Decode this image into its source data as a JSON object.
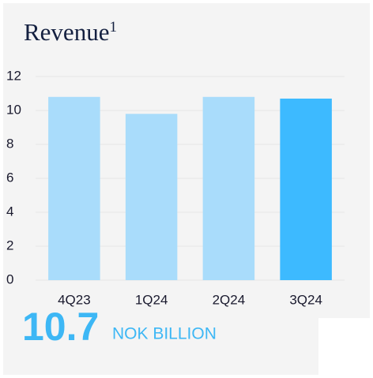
{
  "chart_data": {
    "type": "bar",
    "title": "Revenue",
    "title_note": "1",
    "categories": [
      "4Q23",
      "1Q24",
      "2Q24",
      "3Q24"
    ],
    "values": [
      10.8,
      9.8,
      10.8,
      10.7
    ],
    "colors": [
      "#a9dcfb",
      "#a9dcfb",
      "#a9dcfb",
      "#3dbaff"
    ],
    "ylim": [
      0,
      12
    ],
    "yticks": [
      0,
      2,
      4,
      6,
      8,
      10,
      12
    ],
    "grid": true,
    "headline": {
      "value": 10.7,
      "unit": "NOK BILLION"
    }
  }
}
